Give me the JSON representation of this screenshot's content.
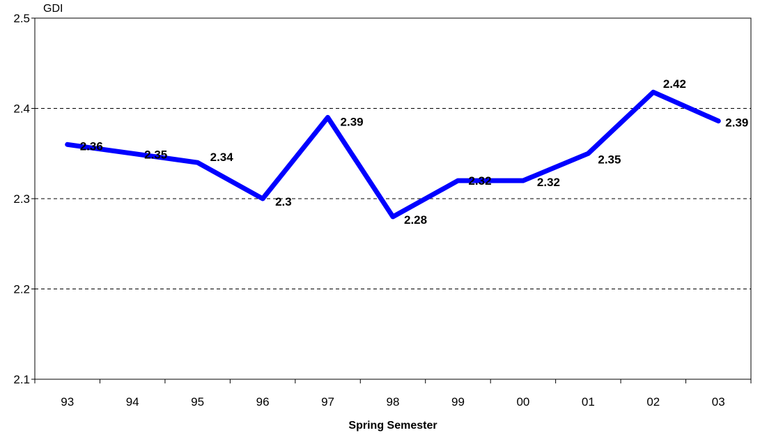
{
  "chart_data": {
    "type": "line",
    "categories": [
      "93",
      "94",
      "95",
      "96",
      "97",
      "98",
      "99",
      "00",
      "01",
      "02",
      "03"
    ],
    "series": [
      {
        "values": [
          2.36,
          2.35,
          2.34,
          2.3,
          2.39,
          2.28,
          2.32,
          2.32,
          2.35,
          2.418,
          2.386
        ]
      }
    ],
    "data_labels": [
      "2.36",
      "2.35",
      "2.34",
      "2.3",
      "2.39",
      "2.28",
      "2.32",
      "2.32",
      "2.35",
      "2.42",
      "2.39"
    ],
    "title": "",
    "xlabel": "Spring Semester",
    "ylabel": "GDI",
    "ylim": [
      2.1,
      2.5
    ],
    "yticks": [
      "2.1",
      "2.2",
      "2.3",
      "2.4",
      "2.5"
    ],
    "grid": "horizontal dashed",
    "legend": "none",
    "line_color": "#0000ff"
  }
}
